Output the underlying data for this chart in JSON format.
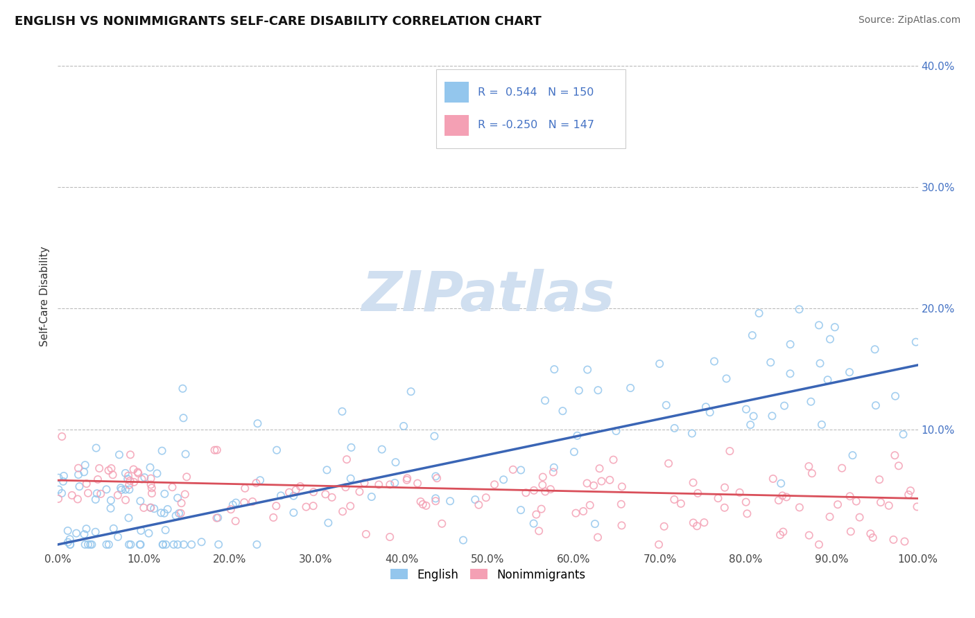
{
  "title": "ENGLISH VS NONIMMIGRANTS SELF-CARE DISABILITY CORRELATION CHART",
  "source": "Source: ZipAtlas.com",
  "ylabel": "Self-Care Disability",
  "xlim": [
    0.0,
    1.0
  ],
  "ylim": [
    0.0,
    0.42
  ],
  "xtick_labels": [
    "0.0%",
    "10.0%",
    "20.0%",
    "30.0%",
    "40.0%",
    "50.0%",
    "60.0%",
    "70.0%",
    "80.0%",
    "90.0%",
    "100.0%"
  ],
  "xtick_vals": [
    0.0,
    0.1,
    0.2,
    0.3,
    0.4,
    0.5,
    0.6,
    0.7,
    0.8,
    0.9,
    1.0
  ],
  "ytick_labels": [
    "10.0%",
    "20.0%",
    "30.0%",
    "40.0%"
  ],
  "ytick_vals": [
    0.1,
    0.2,
    0.3,
    0.4
  ],
  "legend_R1": "0.544",
  "legend_N1": "150",
  "legend_R2": "-0.250",
  "legend_N2": "147",
  "english_color": "#93C6ED",
  "nonimmigrant_color": "#F4A0B4",
  "english_line_color": "#3A65B5",
  "nonimmigrant_line_color": "#D94F5A",
  "r_n_color": "#4472C4",
  "background_color": "#FFFFFF",
  "grid_color": "#BBBBBB",
  "watermark_color": "#D0DFF0",
  "bottom_legend_labels": [
    "English",
    "Nonimmigrants"
  ]
}
